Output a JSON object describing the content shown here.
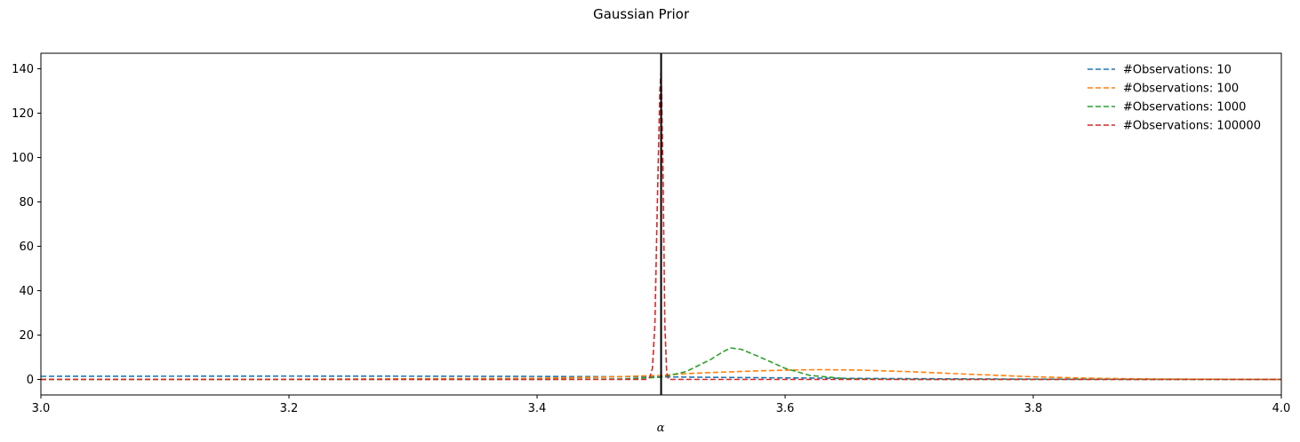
{
  "chart_data": {
    "type": "line",
    "title": "Gaussian Prior",
    "xlabel": "α",
    "ylabel": "",
    "xlim": [
      3.0,
      4.0
    ],
    "ylim": [
      -7,
      147
    ],
    "xticks": [
      "3.0",
      "3.2",
      "3.4",
      "3.6",
      "3.8",
      "4.0"
    ],
    "yticks": [
      "0",
      "20",
      "40",
      "60",
      "80",
      "100",
      "120",
      "140"
    ],
    "vline": 3.5,
    "vline_color": "#000000",
    "legend_position": "upper right",
    "line_style": "dashed",
    "series": [
      {
        "name": "#Observations: 10",
        "color": "#1f77b4",
        "points": [
          [
            3.0,
            1.4
          ],
          [
            3.1,
            1.45
          ],
          [
            3.2,
            1.5
          ],
          [
            3.3,
            1.45
          ],
          [
            3.4,
            1.35
          ],
          [
            3.45,
            1.25
          ],
          [
            3.49,
            1.2
          ],
          [
            3.5,
            1.15
          ],
          [
            3.55,
            0.9
          ],
          [
            3.6,
            0.7
          ],
          [
            3.65,
            0.5
          ],
          [
            3.7,
            0.35
          ],
          [
            3.75,
            0.25
          ],
          [
            3.8,
            0.15
          ],
          [
            3.9,
            0.07
          ],
          [
            4.0,
            0.03
          ]
        ]
      },
      {
        "name": "#Observations: 100",
        "color": "#ff7f0e",
        "points": [
          [
            3.0,
            0.05
          ],
          [
            3.2,
            0.1
          ],
          [
            3.4,
            0.5
          ],
          [
            3.45,
            1.0
          ],
          [
            3.5,
            1.8
          ],
          [
            3.52,
            2.6
          ],
          [
            3.55,
            3.3
          ],
          [
            3.58,
            3.9
          ],
          [
            3.61,
            4.3
          ],
          [
            3.63,
            4.4
          ],
          [
            3.66,
            4.2
          ],
          [
            3.7,
            3.5
          ],
          [
            3.75,
            2.3
          ],
          [
            3.8,
            1.2
          ],
          [
            3.85,
            0.5
          ],
          [
            3.9,
            0.2
          ],
          [
            4.0,
            0.02
          ]
        ]
      },
      {
        "name": "#Observations: 1000",
        "color": "#2ca02c",
        "points": [
          [
            3.0,
            0.0
          ],
          [
            3.4,
            0.0
          ],
          [
            3.47,
            0.2
          ],
          [
            3.5,
            1.0
          ],
          [
            3.52,
            3.5
          ],
          [
            3.54,
            9.0
          ],
          [
            3.55,
            12.5
          ],
          [
            3.556,
            14.2
          ],
          [
            3.565,
            13.5
          ],
          [
            3.58,
            10.0
          ],
          [
            3.6,
            5.0
          ],
          [
            3.62,
            1.8
          ],
          [
            3.65,
            0.3
          ],
          [
            3.7,
            0.02
          ],
          [
            4.0,
            0.0
          ]
        ]
      },
      {
        "name": "#Observations: 100000",
        "color": "#d62728",
        "points": [
          [
            3.0,
            0.0
          ],
          [
            3.488,
            0.0
          ],
          [
            3.491,
            1.0
          ],
          [
            3.493,
            5.0
          ],
          [
            3.495,
            25.0
          ],
          [
            3.497,
            80.0
          ],
          [
            3.499,
            130.0
          ],
          [
            3.5,
            140.0
          ],
          [
            3.5015,
            95.0
          ],
          [
            3.503,
            25.0
          ],
          [
            3.5045,
            3.0
          ],
          [
            3.506,
            0.0
          ],
          [
            4.0,
            0.0
          ]
        ]
      }
    ]
  }
}
